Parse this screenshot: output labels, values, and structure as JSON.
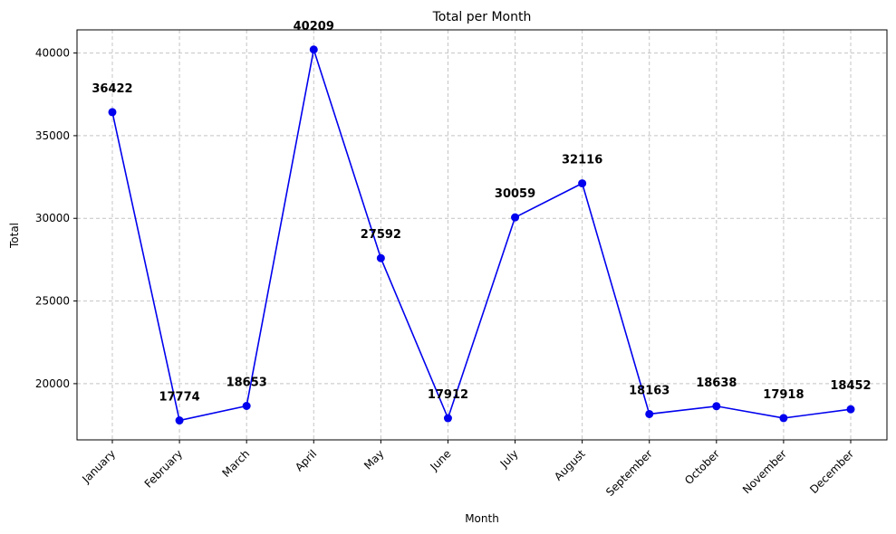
{
  "chart_data": {
    "type": "line",
    "title": "Total per Month",
    "xlabel": "Month",
    "ylabel": "Total",
    "categories": [
      "January",
      "February",
      "March",
      "April",
      "May",
      "June",
      "July",
      "August",
      "September",
      "October",
      "November",
      "December"
    ],
    "values": [
      36422,
      17774,
      18653,
      40209,
      27592,
      17912,
      30059,
      32116,
      18163,
      18638,
      17918,
      18452
    ],
    "ylim": [
      16600,
      41400
    ],
    "yticks": [
      20000,
      25000,
      30000,
      35000,
      40000
    ],
    "grid": true,
    "line_color": "#0000ee",
    "marker_color": "#0000ee"
  }
}
